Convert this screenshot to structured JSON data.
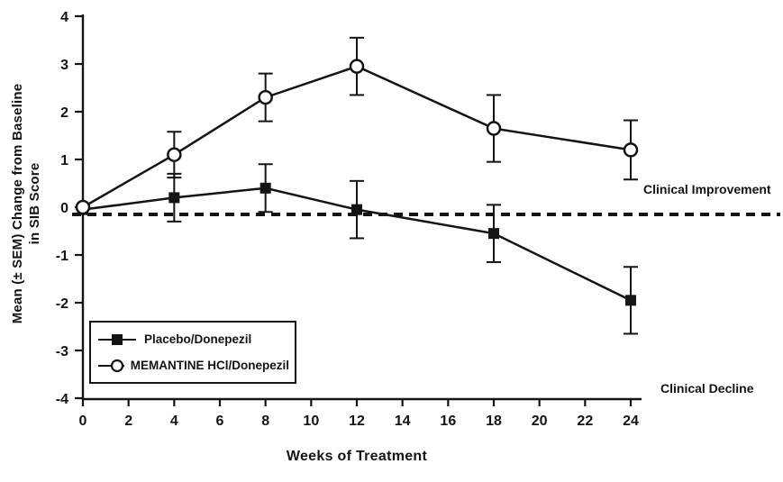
{
  "figure": {
    "ylabel_line1": "Mean (± SEM) Change from Baseline",
    "ylabel_line2": "in SIB Score",
    "xlabel": "Weeks of Treatment",
    "annotation_improvement": "Clinical Improvement",
    "annotation_decline": "Clinical Decline"
  },
  "legend": {
    "items": [
      {
        "label": "Placebo/Donepezil",
        "marker": "filled-square"
      },
      {
        "label": "MEMANTINE HCl/Donepezil",
        "marker": "open-circle"
      }
    ]
  },
  "colors": {
    "ink": "#141414",
    "background": "#fefefe"
  },
  "chart_data": {
    "type": "line",
    "title": "",
    "xlabel": "Weeks of Treatment",
    "ylabel": "Mean (± SEM) Change from Baseline in SIB Score",
    "xlim": [
      0,
      24
    ],
    "ylim": [
      -4,
      4
    ],
    "x_ticks": [
      0,
      2,
      4,
      6,
      8,
      10,
      12,
      14,
      16,
      18,
      20,
      22,
      24
    ],
    "y_ticks": [
      4,
      3,
      2,
      1,
      0,
      -1,
      -2,
      -3,
      -4
    ],
    "grid": false,
    "legend_position": "lower-left",
    "baseline_dashed_y": -0.15,
    "categories_weeks": [
      0,
      4,
      8,
      12,
      18,
      24
    ],
    "series": [
      {
        "name": "Placebo/Donepezil",
        "marker": "filled-square",
        "x": [
          0,
          4,
          8,
          12,
          18,
          24
        ],
        "y": [
          -0.05,
          0.2,
          0.4,
          -0.05,
          -0.55,
          -1.95
        ],
        "sem": [
          0,
          0.5,
          0.5,
          0.6,
          0.6,
          0.7
        ]
      },
      {
        "name": "MEMANTINE HCl/Donepezil",
        "marker": "open-circle",
        "x": [
          0,
          4,
          8,
          12,
          18,
          24
        ],
        "y": [
          0.0,
          1.1,
          2.3,
          2.95,
          1.65,
          1.2
        ],
        "sem": [
          0,
          0.48,
          0.5,
          0.6,
          0.7,
          0.62
        ]
      }
    ],
    "annotations": [
      {
        "text": "Clinical Improvement",
        "position": "right-above-baseline"
      },
      {
        "text": "Clinical Decline",
        "position": "right-bottom"
      }
    ]
  }
}
